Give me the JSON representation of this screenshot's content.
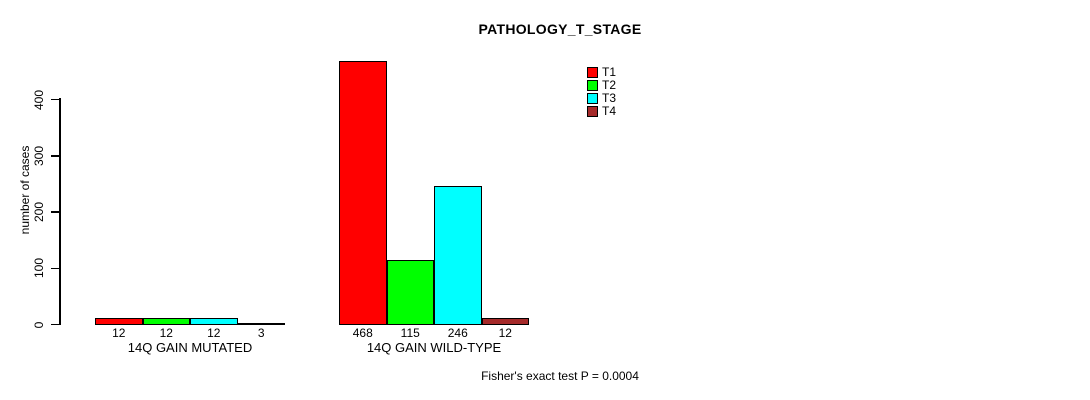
{
  "chart_data": {
    "type": "bar",
    "title": "PATHOLOGY_T_STAGE",
    "ylabel": "number of cases",
    "xlabel": "",
    "categories": [
      "14Q GAIN MUTATED",
      "14Q GAIN WILD-TYPE"
    ],
    "series": [
      {
        "name": "T1",
        "color": "#ff0000",
        "values": [
          12,
          468
        ]
      },
      {
        "name": "T2",
        "color": "#00ff00",
        "values": [
          12,
          115
        ]
      },
      {
        "name": "T3",
        "color": "#00ffff",
        "values": [
          12,
          246
        ]
      },
      {
        "name": "T4",
        "color": "#a52a2a",
        "values": [
          3,
          12
        ]
      }
    ],
    "bar_value_labels": [
      [
        "12",
        "12",
        "12",
        "3"
      ],
      [
        "468",
        "115",
        "246",
        "12"
      ]
    ],
    "ylim": [
      0,
      470
    ],
    "yticks": [
      0,
      100,
      200,
      300,
      400
    ],
    "grid": false,
    "legend_position": "top-right",
    "legend_entries": [
      "T1",
      "T2",
      "T3",
      "T4"
    ],
    "annotation": "Fisher's exact test P = 0.0004"
  }
}
